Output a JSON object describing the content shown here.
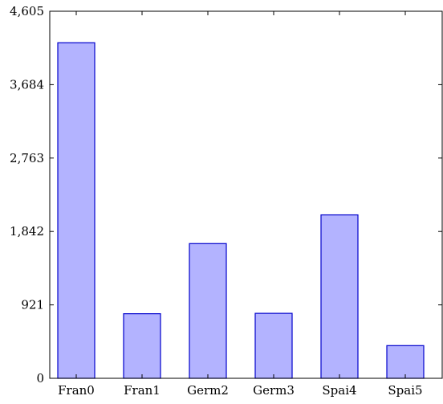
{
  "chart_data": {
    "type": "bar",
    "categories": [
      "Fran0",
      "Fran1",
      "Germ2",
      "Germ3",
      "Spai4",
      "Spai5"
    ],
    "values": [
      4210,
      810,
      1690,
      815,
      2050,
      410
    ],
    "ylim": [
      0,
      4605
    ],
    "yticks": [
      0,
      921,
      1842,
      2763,
      3684,
      4605
    ],
    "ytick_labels": [
      "0",
      "921",
      "1,842",
      "2,763",
      "3,684",
      "4,605"
    ],
    "title": "",
    "xlabel": "",
    "ylabel": "",
    "grid": false,
    "colors": {
      "bar_fill": "#b3b3ff",
      "bar_stroke": "#0000cc",
      "axis": "#000000"
    }
  }
}
